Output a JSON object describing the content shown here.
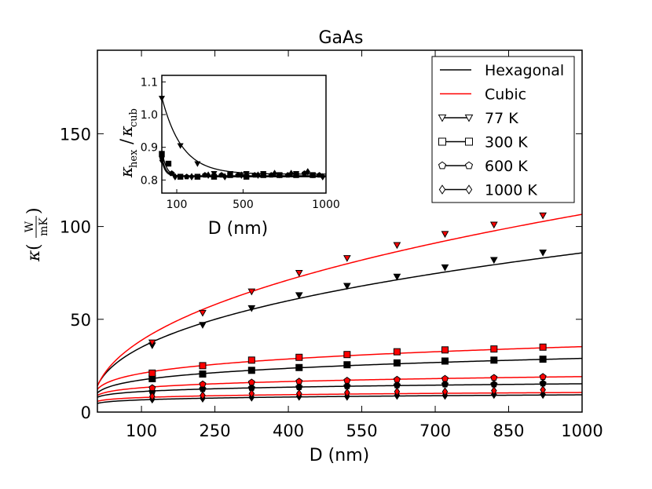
{
  "chart_data": [
    {
      "id": "main",
      "type": "line",
      "title": "GaAs",
      "xlabel": "D (nm)",
      "ylabel": "κ(W/mK)",
      "ylabel_parts": {
        "kappa": "κ",
        "lparen": "(",
        "num": "W",
        "den": "mK",
        "rparen": ")"
      },
      "xlim": [
        10,
        1000
      ],
      "ylim": [
        0,
        195
      ],
      "xticks": [
        100,
        250,
        400,
        550,
        700,
        850,
        1000
      ],
      "yticks": [
        0,
        50,
        100,
        150
      ],
      "marker_x": [
        122,
        225,
        325,
        422,
        520,
        622,
        720,
        820,
        920
      ],
      "curve_form": "a * D^p",
      "series": [
        {
          "name": "Hexagonal 77 K",
          "family": "Hexagonal",
          "temperature": "77 K",
          "color": "#000000",
          "marker": "triangle-down",
          "a": 5.8,
          "p": 0.39,
          "values": [
            36,
            47,
            56,
            63,
            68,
            73,
            78,
            82,
            86
          ]
        },
        {
          "name": "Cubic 77 K",
          "family": "Cubic",
          "temperature": "77 K",
          "color": "#ff0000",
          "marker": "triangle-down",
          "a": 5.1,
          "p": 0.44,
          "values": [
            37.5,
            53.5,
            65,
            75,
            83,
            90,
            96,
            101,
            106
          ]
        },
        {
          "name": "Hexagonal 300 K",
          "family": "Hexagonal",
          "temperature": "300 K",
          "color": "#000000",
          "marker": "square",
          "a": 6.2,
          "p": 0.223,
          "values": [
            18,
            20.5,
            22.5,
            24,
            25.5,
            26.5,
            27.5,
            28,
            28.5
          ]
        },
        {
          "name": "Cubic 300 K",
          "family": "Cubic",
          "temperature": "300 K",
          "color": "#ff0000",
          "marker": "square",
          "a": 7.3,
          "p": 0.228,
          "values": [
            21,
            25,
            28,
            29.5,
            31,
            32.5,
            33.5,
            34,
            35
          ]
        },
        {
          "name": "Hexagonal 600 K",
          "family": "Hexagonal",
          "temperature": "600 K",
          "color": "#000000",
          "marker": "pentagon",
          "a": 5.8,
          "p": 0.14,
          "values": [
            11,
            12.5,
            13,
            13.5,
            14,
            14.5,
            15,
            15,
            15.5
          ]
        },
        {
          "name": "Cubic 600 K",
          "family": "Cubic",
          "temperature": "600 K",
          "color": "#ff0000",
          "marker": "pentagon",
          "a": 6.2,
          "p": 0.163,
          "values": [
            13,
            15,
            16,
            16.5,
            17,
            17.5,
            18,
            18.5,
            19
          ]
        },
        {
          "name": "Hexagonal 1000 K",
          "family": "Hexagonal",
          "temperature": "1000 K",
          "color": "#000000",
          "marker": "diamond",
          "a": 3.3,
          "p": 0.15,
          "values": [
            7,
            7.5,
            8,
            8.5,
            8.5,
            9,
            9,
            9.5,
            9.5
          ]
        },
        {
          "name": "Cubic 1000 K",
          "family": "Cubic",
          "temperature": "1000 K",
          "color": "#ff0000",
          "marker": "diamond",
          "a": 4.3,
          "p": 0.13,
          "values": [
            8.5,
            9,
            10,
            10,
            10.5,
            11,
            11,
            11.5,
            12
          ]
        }
      ],
      "legend": {
        "placement": "top-right",
        "entries": [
          {
            "label": "Hexagonal",
            "kind": "line",
            "color": "#000000"
          },
          {
            "label": "Cubic",
            "kind": "line",
            "color": "#ff0000"
          },
          {
            "label": "77 K",
            "kind": "marker",
            "marker": "triangle-down"
          },
          {
            "label": "300 K",
            "kind": "marker",
            "marker": "square"
          },
          {
            "label": "600 K",
            "kind": "marker",
            "marker": "pentagon"
          },
          {
            "label": "1000 K",
            "kind": "marker",
            "marker": "diamond"
          }
        ]
      }
    },
    {
      "id": "inset",
      "type": "line",
      "xlabel": "D (nm)",
      "ylabel": "κhex/κcub",
      "ylabel_parts": {
        "kappa1": "κ",
        "sub1": "hex",
        "slash": "/",
        "kappa2": "κ",
        "sub2": "cub"
      },
      "xlim": [
        10,
        1000
      ],
      "ylim": [
        0.76,
        1.12
      ],
      "xticks": [
        100,
        500,
        1000
      ],
      "yticks": [
        0.8,
        0.9,
        1.0,
        1.1
      ],
      "ytick_labels": [
        "0.8",
        "0.9",
        "1.0",
        "1.1"
      ],
      "curve_form": "base + amp * exp(-(D - 10) / tau)",
      "series": [
        {
          "name": "77 K",
          "marker": "triangle-down",
          "base": 0.818,
          "amp": 0.235,
          "tau": 120,
          "x": [
            10,
            122,
            225,
            325,
            422,
            520,
            622,
            720,
            820,
            920
          ],
          "values": [
            1.05,
            0.905,
            0.85,
            0.82,
            0.82,
            0.82,
            0.82,
            0.815,
            0.82,
            0.815
          ]
        },
        {
          "name": "300 K",
          "marker": "square",
          "base": 0.81,
          "amp": 0.08,
          "tau": 28,
          "x": [
            10,
            50,
            122,
            225,
            325,
            422,
            520,
            622,
            720,
            820,
            920
          ],
          "values": [
            0.88,
            0.85,
            0.81,
            0.81,
            0.81,
            0.815,
            0.81,
            0.815,
            0.815,
            0.815,
            0.815
          ]
        },
        {
          "name": "600 K",
          "marker": "pentagon",
          "base": 0.813,
          "amp": 0.06,
          "tau": 22,
          "x": [
            10,
            70,
            160,
            270,
            370,
            470,
            570,
            670,
            770,
            870,
            960
          ],
          "values": [
            0.87,
            0.82,
            0.81,
            0.815,
            0.815,
            0.815,
            0.815,
            0.815,
            0.815,
            0.82,
            0.815
          ]
        },
        {
          "name": "1000 K",
          "marker": "diamond",
          "base": 0.812,
          "amp": 0.05,
          "tau": 20,
          "x": [
            10,
            90,
            190,
            290,
            390,
            490,
            590,
            690,
            790,
            890,
            980
          ],
          "values": [
            0.86,
            0.81,
            0.81,
            0.815,
            0.81,
            0.815,
            0.815,
            0.82,
            0.82,
            0.825,
            0.81
          ]
        }
      ]
    }
  ]
}
